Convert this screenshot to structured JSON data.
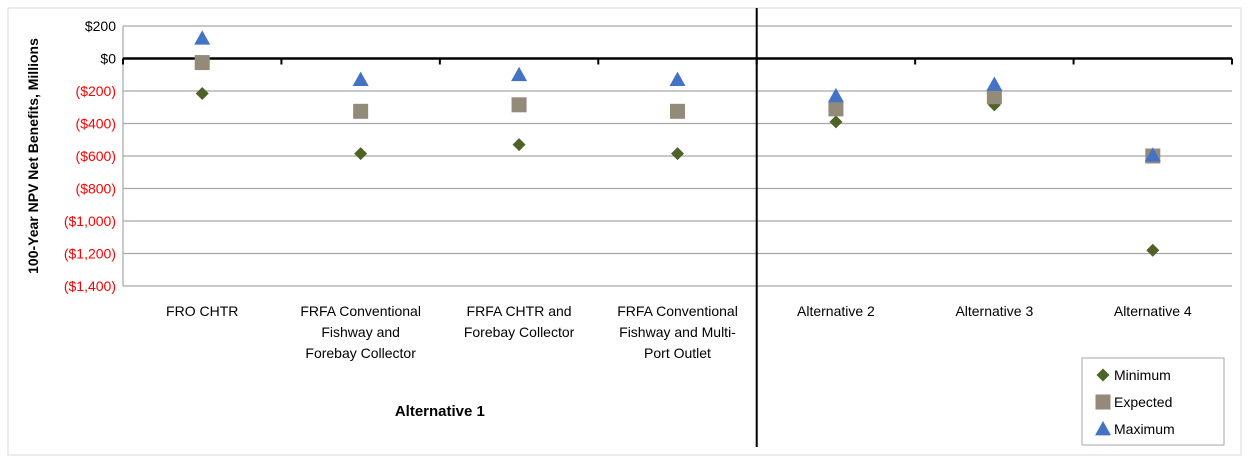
{
  "chart_data": {
    "type": "scatter",
    "ylabel": "100-Year NPV Net Benefits, Millions",
    "ylim": [
      -1400,
      200
    ],
    "yticks": [
      200,
      0,
      -200,
      -400,
      -600,
      -800,
      -1000,
      -1200,
      -1400
    ],
    "ytick_labels": [
      "$200",
      "$0",
      "($200)",
      "($400)",
      "($600)",
      "($800)",
      "($1,000)",
      "($1,200)",
      "($1,400)"
    ],
    "negative_tick_color": "#ff0000",
    "grid": true,
    "categories": [
      "FRO CHTR",
      "FRFA Conventional Fishway and Forebay Collector",
      "FRFA CHTR and Forebay Collector",
      "FRFA Conventional Fishway and Multi-Port Outlet",
      "Alternative 2",
      "Alternative 3",
      "Alternative 4"
    ],
    "category_lines": [
      [
        "FRO CHTR"
      ],
      [
        "FRFA Conventional",
        "Fishway and",
        "Forebay Collector"
      ],
      [
        "FRFA CHTR and",
        "Forebay Collector"
      ],
      [
        "FRFA Conventional",
        "Fishway and Multi-",
        "Port Outlet"
      ],
      [
        "Alternative 2"
      ],
      [
        "Alternative 3"
      ],
      [
        "Alternative 4"
      ]
    ],
    "group_label": "Alternative 1",
    "group_span": [
      0,
      3
    ],
    "series": [
      {
        "name": "Minimum",
        "marker": "diamond",
        "color": "#4f6228",
        "values": [
          -215,
          -585,
          -530,
          -585,
          -390,
          -285,
          -1180
        ]
      },
      {
        "name": "Expected",
        "marker": "square",
        "color": "#948a7a",
        "values": [
          -25,
          -325,
          -285,
          -325,
          -310,
          -235,
          -600
        ]
      },
      {
        "name": "Maximum",
        "marker": "triangle",
        "color": "#4472c4",
        "values": [
          125,
          -130,
          -100,
          -130,
          -230,
          -160,
          -595
        ]
      }
    ],
    "legend_position": "bottom-right"
  }
}
